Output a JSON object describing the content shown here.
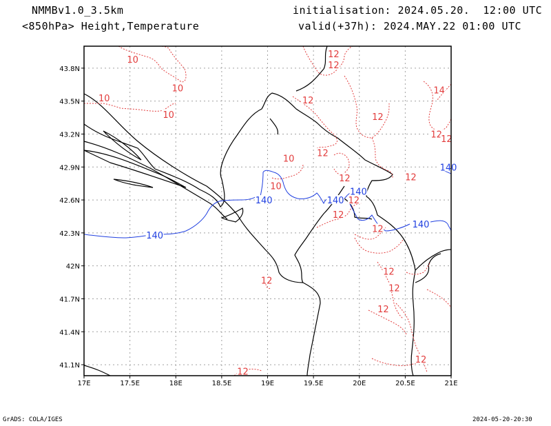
{
  "header": {
    "model": "NMMBv1.0_3.5km",
    "level": "<850hPa> Height,Temperature",
    "initialisation": "initialisation: 2024.05.20.  12:00 UTC",
    "valid": "valid(+37h): 2024.MAY.22 01:00 UTC"
  },
  "footer": {
    "credit": "GrADS: COLA/IGES",
    "timestamp": "2024-05-20-20:30"
  },
  "map": {
    "lon_range": [
      17,
      21
    ],
    "lat_range": [
      41.0,
      44.0
    ],
    "lon_ticks": [
      {
        "v": 17,
        "label": "17E"
      },
      {
        "v": 17.5,
        "label": "17.5E"
      },
      {
        "v": 18,
        "label": "18E"
      },
      {
        "v": 18.5,
        "label": "18.5E"
      },
      {
        "v": 19,
        "label": "19E"
      },
      {
        "v": 19.5,
        "label": "19.5E"
      },
      {
        "v": 20,
        "label": "20E"
      },
      {
        "v": 20.5,
        "label": "20.5E"
      },
      {
        "v": 21,
        "label": "21E"
      }
    ],
    "lat_ticks": [
      {
        "v": 41.1,
        "label": "41.1N"
      },
      {
        "v": 41.4,
        "label": "41.4N"
      },
      {
        "v": 41.7,
        "label": "41.7N"
      },
      {
        "v": 42.0,
        "label": "42N"
      },
      {
        "v": 42.3,
        "label": "42.3N"
      },
      {
        "v": 42.6,
        "label": "42.6N"
      },
      {
        "v": 42.9,
        "label": "42.9N"
      },
      {
        "v": 43.2,
        "label": "43.2N"
      },
      {
        "v": 43.5,
        "label": "43.5N"
      },
      {
        "v": 43.8,
        "label": "43.8N"
      }
    ],
    "grid": "dotted",
    "colors": {
      "temperature": "#e23c3c",
      "height": "#1f3fe0",
      "coast_border": "#000000",
      "grid": "#a0a0a0"
    },
    "temperature_labels": [
      {
        "text": "10",
        "lon": 17.53,
        "lat": 43.88
      },
      {
        "text": "10",
        "lon": 18.02,
        "lon2": 0,
        "lat": 43.62
      },
      {
        "text": "10",
        "lon": 17.22,
        "lat": 43.53
      },
      {
        "text": "10",
        "lon": 17.92,
        "lat": 43.38
      },
      {
        "text": "10",
        "lon": 19.23,
        "lat": 42.98
      },
      {
        "text": "10",
        "lon": 19.09,
        "lat": 42.73
      },
      {
        "text": "12",
        "lon": 19.72,
        "lat": 43.93
      },
      {
        "text": "12",
        "lon": 19.72,
        "lat": 43.83
      },
      {
        "text": "12",
        "lon": 19.44,
        "lat": 43.51
      },
      {
        "text": "12",
        "lon": 20.2,
        "lat": 43.36
      },
      {
        "text": "12",
        "lon": 20.84,
        "lat": 43.2
      },
      {
        "text": "12",
        "lon": 19.6,
        "lat": 43.03
      },
      {
        "text": "12",
        "lon": 19.84,
        "lat": 42.8
      },
      {
        "text": "12",
        "lon": 20.56,
        "lat": 42.81
      },
      {
        "text": "12",
        "lon": 19.94,
        "lat": 42.6
      },
      {
        "text": "12",
        "lon": 19.77,
        "lat": 42.47
      },
      {
        "text": "12",
        "lon": 20.2,
        "lat": 42.34
      },
      {
        "text": "12",
        "lon": 20.32,
        "lat": 41.95
      },
      {
        "text": "12",
        "lon": 20.38,
        "lat": 41.8
      },
      {
        "text": "12",
        "lon": 20.26,
        "lat": 41.61
      },
      {
        "text": "12",
        "lon": 18.99,
        "lat": 41.87
      },
      {
        "text": "12",
        "lon": 20.67,
        "lat": 41.15
      },
      {
        "text": "12",
        "lon": 18.73,
        "lat": 41.04
      },
      {
        "text": "14",
        "lon": 20.87,
        "lat": 43.6
      },
      {
        "text": "12",
        "lon": 20.95,
        "lat": 43.16
      }
    ],
    "height_labels": [
      {
        "text": "140",
        "lon": 17.77,
        "lat": 42.28
      },
      {
        "text": "140",
        "lon": 18.96,
        "lat": 42.6
      },
      {
        "text": "140",
        "lon": 19.74,
        "lat": 42.6
      },
      {
        "text": "140",
        "lon": 19.99,
        "lat": 42.68
      },
      {
        "text": "140",
        "lon": 20.67,
        "lat": 42.38
      },
      {
        "text": "140",
        "lon": 20.97,
        "lat": 42.9
      }
    ]
  }
}
